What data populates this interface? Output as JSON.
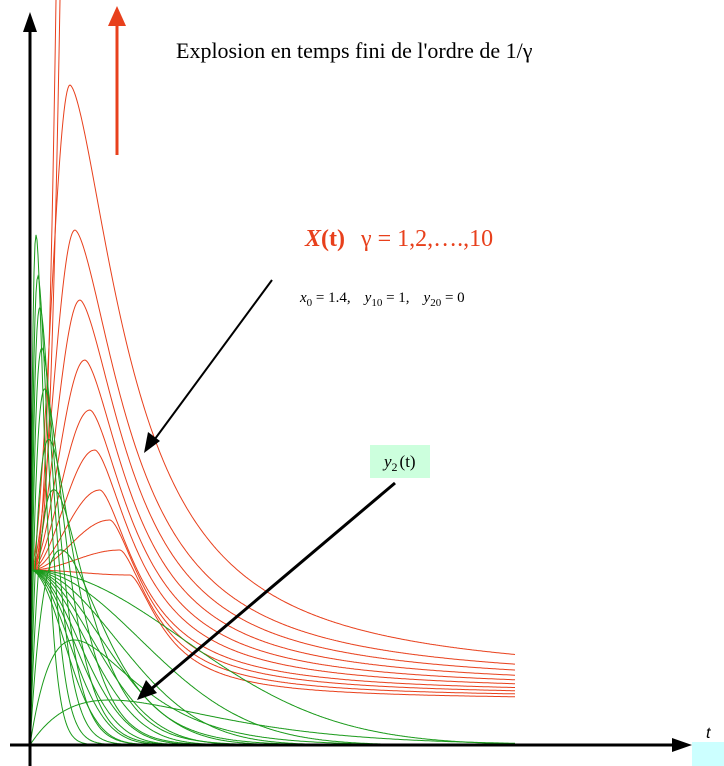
{
  "title": "Explosion en temps fini de l'ordre de 1/γ",
  "x_curve": {
    "symbol": "X",
    "arg": "(t)",
    "gamma": "γ = 1,2,….,10"
  },
  "initial": [
    {
      "var": "x",
      "sub": "0",
      "rest": " = 1.4,"
    },
    {
      "var": "y",
      "sub": "10",
      "rest": " = 1,"
    },
    {
      "var": "y",
      "sub": "20",
      "rest": " = 0"
    }
  ],
  "y2_label": {
    "var": "y",
    "sub": "2",
    "arg": "(t)"
  },
  "axis_t": "t"
}
